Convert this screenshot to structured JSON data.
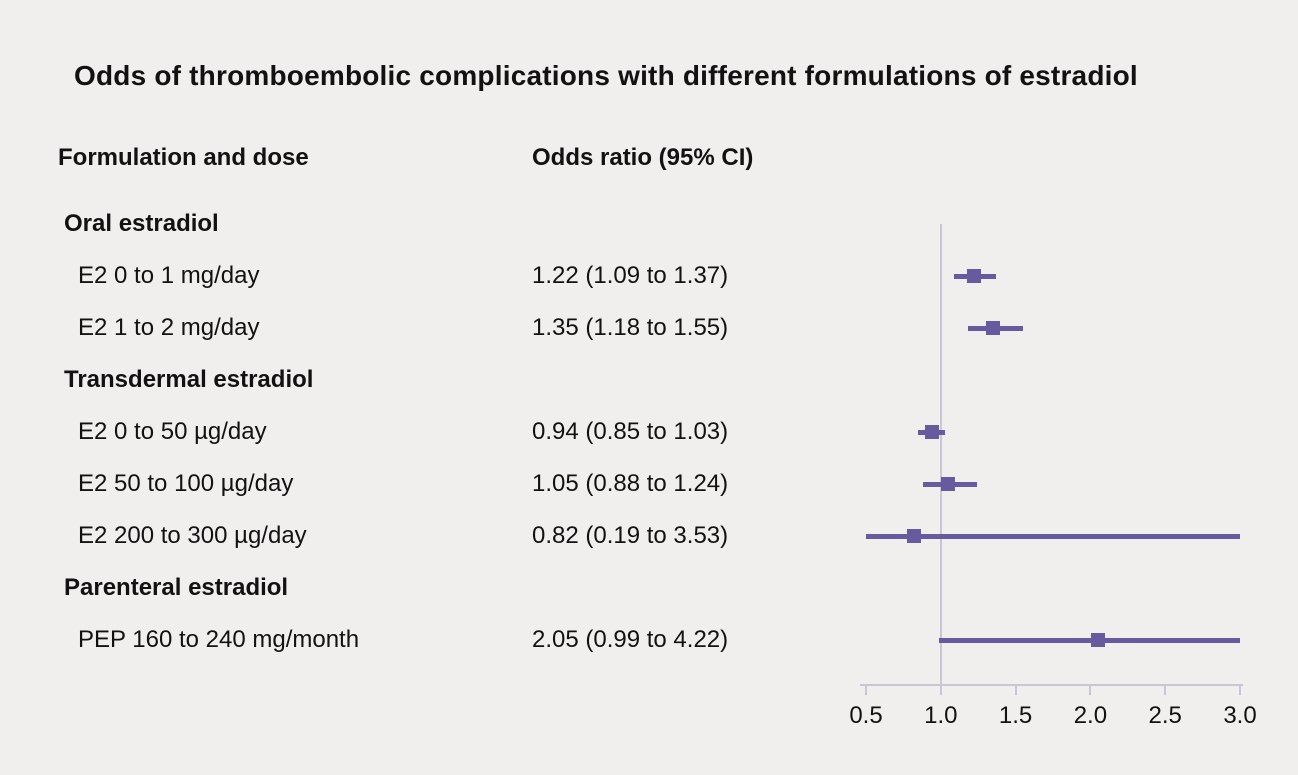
{
  "title": "Odds of thromboembolic complications with different formulations of estradiol",
  "columns": {
    "formulation": "Formulation and dose",
    "odds_ratio": "Odds ratio (95% CI)"
  },
  "chart_data": {
    "type": "forest",
    "title": "Odds of thromboembolic complications with different formulations of estradiol",
    "axis": {
      "min": 0.5,
      "max": 3.0,
      "ticks": [
        0.5,
        1.0,
        1.5,
        2.0,
        2.5,
        3.0
      ],
      "tick_labels": [
        "0.5",
        "1.0",
        "1.5",
        "2.0",
        "2.5",
        "3.0"
      ],
      "reference_line": 1.0
    },
    "groups": [
      {
        "label": "Oral estradiol",
        "items": [
          {
            "label": "E2 0 to 1 mg/day",
            "or_text": "1.22 (1.09 to 1.37)",
            "or": 1.22,
            "lo": 1.09,
            "hi": 1.37
          },
          {
            "label": "E2 1 to 2 mg/day",
            "or_text": "1.35 (1.18 to 1.55)",
            "or": 1.35,
            "lo": 1.18,
            "hi": 1.55
          }
        ]
      },
      {
        "label": "Transdermal estradiol",
        "items": [
          {
            "label": "E2 0 to 50 µg/day",
            "or_text": "0.94 (0.85 to 1.03)",
            "or": 0.94,
            "lo": 0.85,
            "hi": 1.03
          },
          {
            "label": "E2 50 to 100 µg/day",
            "or_text": "1.05 (0.88 to 1.24)",
            "or": 1.05,
            "lo": 0.88,
            "hi": 1.24
          },
          {
            "label": "E2 200 to 300 µg/day",
            "or_text": "0.82 (0.19 to 3.53)",
            "or": 0.82,
            "lo": 0.19,
            "hi": 3.53
          }
        ]
      },
      {
        "label": "Parenteral estradiol",
        "items": [
          {
            "label": "PEP 160 to 240 mg/month",
            "or_text": "2.05 (0.99 to 4.22)",
            "or": 2.05,
            "lo": 0.99,
            "hi": 4.22
          }
        ]
      }
    ],
    "colors": {
      "marker": "#675a9f",
      "reference_line": "#c9c6d8",
      "axis_line": "#c9c6d8",
      "background": "#f0efed",
      "text": "#121212"
    }
  }
}
